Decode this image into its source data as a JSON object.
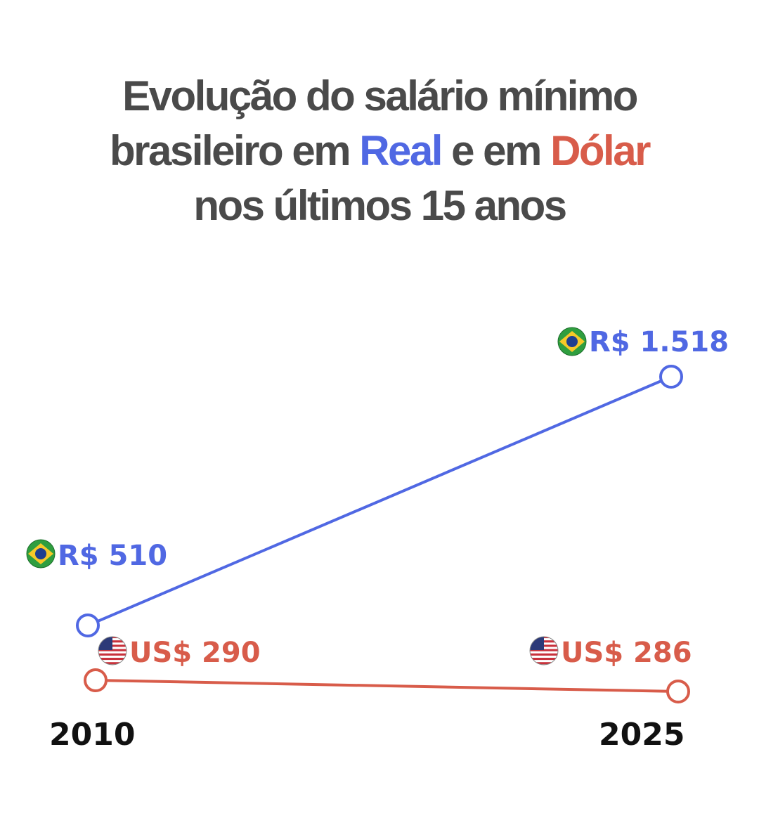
{
  "title": {
    "line1": "Evolução do salário mínimo",
    "line2_before": "brasileiro em ",
    "line2_real": "Real",
    "line2_mid": " e em ",
    "line2_dolar": "Dólar",
    "line3": "nos últimos 15 anos"
  },
  "colors": {
    "real": "#5068e3",
    "dolar": "#d85c4a",
    "title": "#4a4a4a",
    "brazil_flag_green": "#2f9e3f",
    "brazil_flag_yellow": "#f6c928",
    "brazil_flag_blue": "#1f3f8f",
    "usa_flag_red": "#c8323c",
    "usa_flag_blue": "#2c3a78"
  },
  "chart_data": {
    "type": "line",
    "x": [
      "2010",
      "2025"
    ],
    "series": [
      {
        "key": "real",
        "values": [
          510,
          1518
        ],
        "labels": [
          "R$ 510",
          "R$ 1.518"
        ],
        "flag_icon": "brazil-flag-icon"
      },
      {
        "key": "dolar",
        "values": [
          290,
          286
        ],
        "labels": [
          "US$ 290",
          "US$ 286"
        ],
        "flag_icon": "usa-flag-icon"
      }
    ]
  }
}
